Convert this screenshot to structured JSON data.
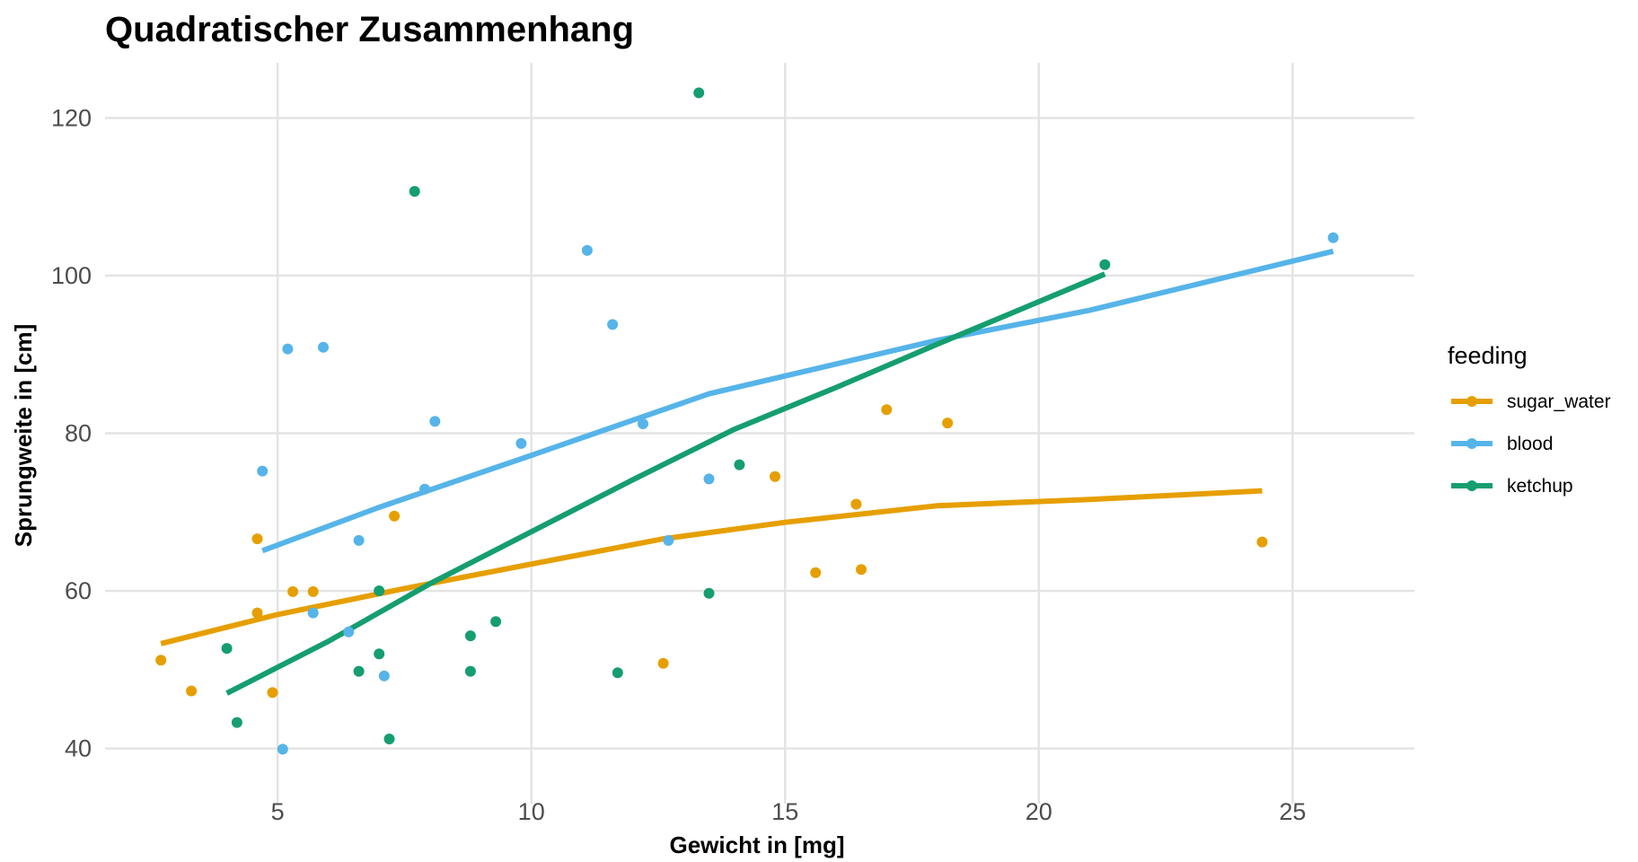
{
  "chart_data": {
    "type": "scatter",
    "title": "Quadratischer Zusammenhang",
    "xlabel": "Gewicht in [mg]",
    "ylabel": "Sprungweite in [cm]",
    "xlim": [
      1.6,
      27.4
    ],
    "ylim": [
      33,
      127
    ],
    "x_ticks": [
      5,
      10,
      15,
      20,
      25
    ],
    "y_ticks": [
      40,
      60,
      80,
      100,
      120
    ],
    "x_tick_labels": [
      "5",
      "10",
      "15",
      "20",
      "25"
    ],
    "y_tick_labels": [
      "40",
      "60",
      "80",
      "100",
      "120"
    ],
    "grid": true,
    "legend": {
      "title": "feeding",
      "position": "right"
    },
    "series": [
      {
        "name": "sugar_water",
        "color": "#E69F00",
        "points": [
          [
            2.7,
            51.2
          ],
          [
            3.3,
            47.3
          ],
          [
            4.6,
            66.6
          ],
          [
            4.6,
            57.2
          ],
          [
            4.9,
            47.1
          ],
          [
            5.3,
            59.9
          ],
          [
            5.7,
            59.9
          ],
          [
            7.3,
            69.5
          ],
          [
            12.6,
            50.8
          ],
          [
            14.8,
            74.5
          ],
          [
            15.6,
            62.3
          ],
          [
            16.4,
            71.0
          ],
          [
            16.5,
            62.7
          ],
          [
            17.0,
            83.0
          ],
          [
            18.2,
            81.3
          ],
          [
            24.4,
            66.2
          ]
        ],
        "trend": [
          [
            2.7,
            53.3
          ],
          [
            5.0,
            57.0
          ],
          [
            7.5,
            60.3
          ],
          [
            10.0,
            63.4
          ],
          [
            12.6,
            66.6
          ],
          [
            15.0,
            68.7
          ],
          [
            18.0,
            70.8
          ],
          [
            21.0,
            71.6
          ],
          [
            24.4,
            72.7
          ]
        ]
      },
      {
        "name": "blood",
        "color": "#56B4E9",
        "points": [
          [
            4.7,
            75.2
          ],
          [
            5.1,
            39.9
          ],
          [
            5.2,
            90.7
          ],
          [
            5.7,
            57.2
          ],
          [
            5.9,
            90.9
          ],
          [
            6.4,
            54.8
          ],
          [
            6.6,
            66.4
          ],
          [
            7.1,
            49.2
          ],
          [
            7.9,
            72.9
          ],
          [
            8.1,
            81.5
          ],
          [
            9.8,
            78.7
          ],
          [
            11.1,
            103.2
          ],
          [
            11.6,
            93.8
          ],
          [
            12.2,
            81.2
          ],
          [
            12.7,
            66.4
          ],
          [
            13.5,
            74.2
          ],
          [
            25.8,
            104.8
          ]
        ],
        "trend": [
          [
            4.7,
            65.1
          ],
          [
            7.0,
            70.6
          ],
          [
            10.0,
            77.2
          ],
          [
            13.5,
            85.0
          ],
          [
            18.0,
            91.8
          ],
          [
            21.0,
            95.6
          ],
          [
            25.8,
            103.1
          ]
        ]
      },
      {
        "name": "ketchup",
        "color": "#159E6F",
        "points": [
          [
            4.0,
            52.7
          ],
          [
            4.2,
            43.3
          ],
          [
            6.6,
            49.8
          ],
          [
            7.0,
            60.0
          ],
          [
            7.0,
            52.0
          ],
          [
            7.2,
            41.2
          ],
          [
            7.7,
            110.7
          ],
          [
            8.8,
            54.3
          ],
          [
            8.8,
            49.8
          ],
          [
            9.3,
            56.1
          ],
          [
            11.7,
            49.6
          ],
          [
            13.3,
            123.2
          ],
          [
            13.5,
            59.7
          ],
          [
            14.1,
            76.0
          ],
          [
            21.3,
            101.4
          ]
        ],
        "trend": [
          [
            4.0,
            47.0
          ],
          [
            6.0,
            53.6
          ],
          [
            8.0,
            60.9
          ],
          [
            10.0,
            67.5
          ],
          [
            12.0,
            74.1
          ],
          [
            14.0,
            80.5
          ],
          [
            16.0,
            85.8
          ],
          [
            18.0,
            91.3
          ],
          [
            21.3,
            100.2
          ]
        ]
      }
    ]
  }
}
